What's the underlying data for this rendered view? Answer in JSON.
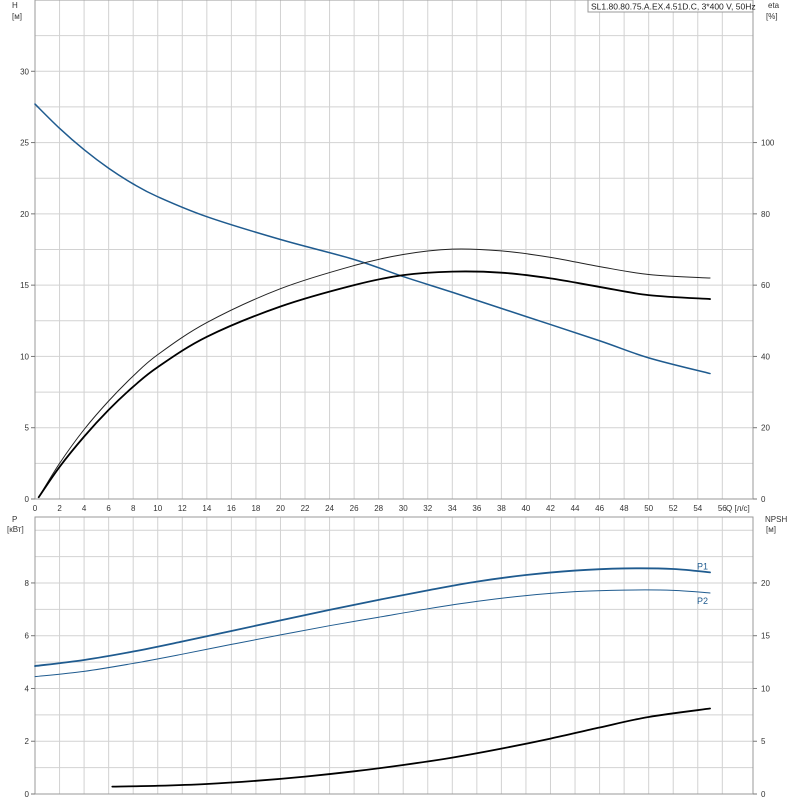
{
  "title": "SL1.80.80.75.A.EX.4.51D.C, 3*400 V, 50Hz",
  "colors": {
    "blue": "#1f5b8f",
    "black": "#000000",
    "dark": "#222222",
    "grid": "#d2d2d2"
  },
  "chart_data": [
    {
      "type": "line",
      "name": "top-chart",
      "xlabel": "Q [л/с]",
      "x_ticks": [
        0,
        2,
        4,
        6,
        8,
        10,
        12,
        14,
        16,
        18,
        20,
        22,
        24,
        26,
        28,
        30,
        32,
        34,
        36,
        38,
        40,
        42,
        44,
        46,
        48,
        50,
        52,
        54,
        56
      ],
      "xlim": [
        0,
        58.5
      ],
      "y_left": {
        "label_line1": "H",
        "label_line2": "[м]",
        "ylim": [
          0,
          35
        ],
        "ticks": [
          0,
          5,
          10,
          15,
          20,
          25,
          30
        ]
      },
      "y_right": {
        "label_line1": "eta",
        "label_line2": "[%]",
        "ylim": [
          0,
          140
        ],
        "ticks": [
          0,
          20,
          40,
          60,
          80,
          100
        ]
      },
      "grid": true,
      "series": [
        {
          "axis": "left",
          "color": "blue",
          "width": 1.5,
          "x": [
            0,
            2,
            4,
            6,
            8,
            10,
            14,
            20,
            26,
            30,
            34,
            40,
            46,
            50,
            55
          ],
          "values": [
            27.7,
            26.0,
            24.5,
            23.2,
            22.1,
            21.2,
            19.8,
            18.2,
            16.8,
            15.6,
            14.5,
            12.8,
            11.1,
            9.9,
            8.8
          ]
        },
        {
          "axis": "right",
          "color": "dark",
          "width": 1,
          "x": [
            0.3,
            2,
            4,
            6,
            8,
            10,
            14,
            20,
            26,
            30,
            34,
            38,
            42,
            46,
            50,
            55
          ],
          "values": [
            0.5,
            10,
            19.5,
            27.5,
            34.5,
            40.5,
            49.5,
            59,
            65.5,
            68.6,
            70.1,
            69.6,
            67.8,
            65.2,
            63,
            62
          ]
        },
        {
          "axis": "right",
          "color": "black",
          "width": 1.8,
          "x": [
            0.3,
            2,
            4,
            6,
            8,
            10,
            14,
            20,
            26,
            30,
            34,
            38,
            42,
            46,
            50,
            55
          ],
          "values": [
            0.5,
            9,
            17.5,
            25,
            31.5,
            37,
            45.5,
            54,
            60,
            62.8,
            63.8,
            63.5,
            61.9,
            59.5,
            57.2,
            56.1
          ]
        }
      ]
    },
    {
      "type": "line",
      "name": "bottom-chart",
      "xlim": [
        0,
        58.5
      ],
      "x_ticks": [
        0,
        2,
        4,
        6,
        8,
        10,
        12,
        14,
        16,
        18,
        20,
        22,
        24,
        26,
        28,
        30,
        32,
        34,
        36,
        38,
        40,
        42,
        44,
        46,
        48,
        50,
        52,
        54,
        56
      ],
      "y_left": {
        "label_line1": "P",
        "label_line2": "[кВт]",
        "ylim": [
          0,
          10.5
        ],
        "ticks": [
          0,
          2,
          4,
          6,
          8
        ]
      },
      "y_right": {
        "label_line1": "NPSH",
        "label_line2": "[м]",
        "ylim": [
          0,
          26.25
        ],
        "ticks": [
          0,
          5,
          10,
          15,
          20
        ]
      },
      "grid": true,
      "series": [
        {
          "name": "P1",
          "axis": "left",
          "color": "blue",
          "width": 1.8,
          "x": [
            0,
            4,
            8,
            12,
            16,
            20,
            24,
            28,
            32,
            36,
            40,
            44,
            48,
            52,
            55
          ],
          "values": [
            4.85,
            5.08,
            5.4,
            5.78,
            6.18,
            6.58,
            6.98,
            7.36,
            7.72,
            8.05,
            8.3,
            8.47,
            8.55,
            8.53,
            8.4
          ]
        },
        {
          "name": "P2",
          "axis": "left",
          "color": "blue",
          "width": 1,
          "x": [
            0,
            4,
            8,
            12,
            16,
            20,
            24,
            28,
            32,
            36,
            40,
            44,
            48,
            52,
            55
          ],
          "values": [
            4.45,
            4.65,
            4.95,
            5.3,
            5.67,
            6.03,
            6.38,
            6.7,
            7.02,
            7.3,
            7.52,
            7.67,
            7.73,
            7.72,
            7.62
          ]
        },
        {
          "axis": "right",
          "color": "black",
          "width": 1.8,
          "x": [
            6.3,
            10,
            14,
            18,
            22,
            26,
            30,
            34,
            38,
            42,
            46,
            50,
            55
          ],
          "values": [
            0.7,
            0.78,
            0.95,
            1.25,
            1.65,
            2.15,
            2.75,
            3.45,
            4.3,
            5.25,
            6.3,
            7.3,
            8.1
          ]
        }
      ]
    }
  ]
}
